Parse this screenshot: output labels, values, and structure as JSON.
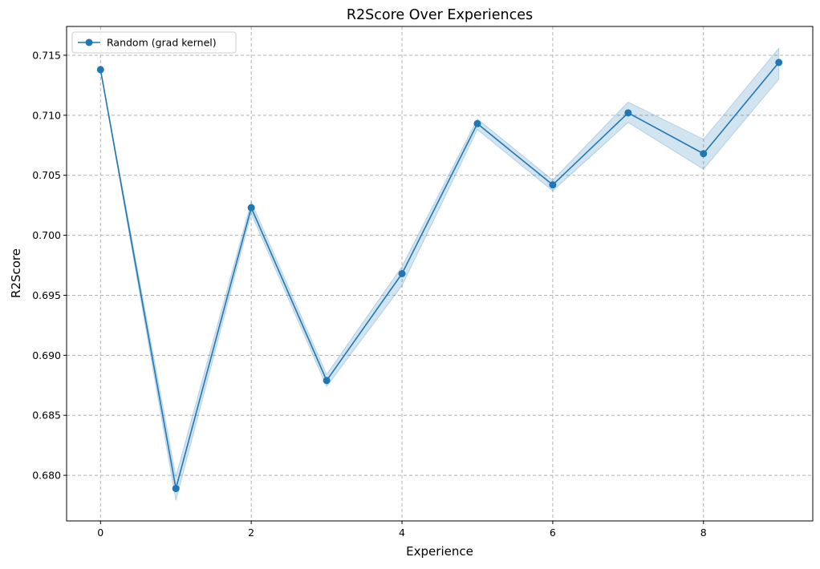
{
  "chart_data": {
    "type": "line",
    "title": "R2Score Over Experiences",
    "xlabel": "Experience",
    "ylabel": "R2Score",
    "xlim": [
      -0.45,
      9.45
    ],
    "ylim": [
      0.6762,
      0.7174
    ],
    "xticks": [
      0,
      2,
      4,
      6,
      8
    ],
    "xtick_labels": [
      "0",
      "2",
      "4",
      "6",
      "8"
    ],
    "yticks": [
      0.68,
      0.685,
      0.69,
      0.695,
      0.7,
      0.705,
      0.71,
      0.715
    ],
    "ytick_labels": [
      "0.680",
      "0.685",
      "0.690",
      "0.695",
      "0.700",
      "0.705",
      "0.710",
      "0.715"
    ],
    "grid": true,
    "legend_position": "top-left",
    "series": [
      {
        "name": "Random (grad kernel)",
        "color": "#1f77b4",
        "marker": "circle",
        "x": [
          0,
          1,
          2,
          3,
          4,
          5,
          6,
          7,
          8,
          9
        ],
        "values": [
          0.7138,
          0.6789,
          0.7023,
          0.6879,
          0.6968,
          0.7093,
          0.7042,
          0.7102,
          0.7068,
          0.7144
        ],
        "band_lower": [
          0.7138,
          0.6779,
          0.7018,
          0.6874,
          0.6958,
          0.7088,
          0.7037,
          0.7094,
          0.7055,
          0.713
        ],
        "band_upper": [
          0.7138,
          0.6799,
          0.7028,
          0.6884,
          0.6974,
          0.7097,
          0.7046,
          0.7111,
          0.708,
          0.7156
        ]
      }
    ]
  }
}
